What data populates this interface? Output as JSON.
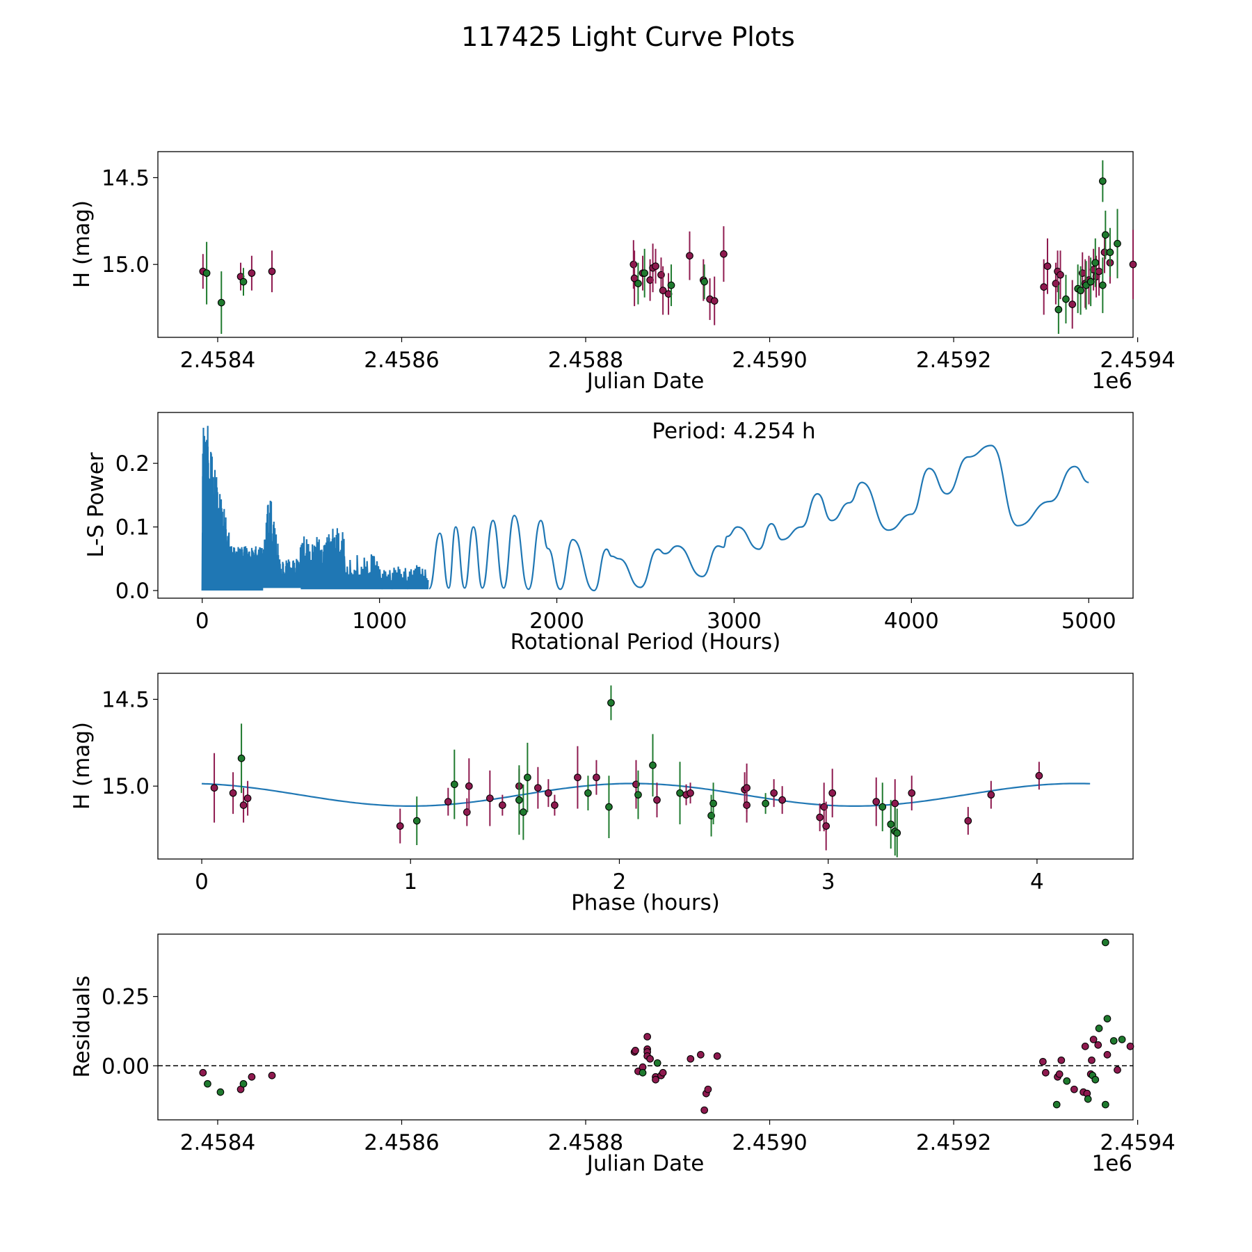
{
  "figure": {
    "title": "117425 Light Curve Plots",
    "colors": {
      "purple": "#8e1a4f",
      "green": "#1f7a2e",
      "fit": "#1f77b4"
    }
  },
  "chart_data": [
    {
      "type": "scatter",
      "name": "light-curve",
      "xlabel": "Julian Date",
      "ylabel": "H (mag)",
      "x_offset_label": "1e6",
      "xlim": [
        2458335,
        2459395
      ],
      "ylim": [
        15.42,
        14.35
      ],
      "xticks": [
        2458400,
        2458600,
        2458800,
        2459000,
        2459200,
        2459400
      ],
      "xtick_labels": [
        "2.4584",
        "2.4586",
        "2.4588",
        "2.4590",
        "2.4592",
        "2.4594"
      ],
      "yticks": [
        15.0,
        14.5
      ],
      "ytick_labels": [
        "15.0",
        "14.5"
      ],
      "series": [
        {
          "name": "purple",
          "color": "purple",
          "points": [
            [
              2458384,
              15.04,
              0.1
            ],
            [
              2458425,
              15.07,
              0.08
            ],
            [
              2458437,
              15.05,
              0.1
            ],
            [
              2458459,
              15.04,
              0.12
            ],
            [
              2458852,
              15.0,
              0.14
            ],
            [
              2458853,
              15.08,
              0.16
            ],
            [
              2458862,
              15.05,
              0.1
            ],
            [
              2458870,
              15.09,
              0.12
            ],
            [
              2458873,
              15.02,
              0.14
            ],
            [
              2458876,
              15.01,
              0.1
            ],
            [
              2458882,
              15.06,
              0.1
            ],
            [
              2458884,
              15.15,
              0.14
            ],
            [
              2458890,
              15.17,
              0.12
            ],
            [
              2458913,
              14.95,
              0.14
            ],
            [
              2458928,
              15.09,
              0.12
            ],
            [
              2458935,
              15.2,
              0.12
            ],
            [
              2458940,
              15.21,
              0.14
            ],
            [
              2458950,
              14.94,
              0.16
            ],
            [
              2459298,
              15.13,
              0.16
            ],
            [
              2459302,
              15.01,
              0.16
            ],
            [
              2459311,
              15.11,
              0.12
            ],
            [
              2459313,
              15.04,
              0.12
            ],
            [
              2459316,
              15.06,
              0.14
            ],
            [
              2459329,
              15.23,
              0.14
            ],
            [
              2459340,
              15.05,
              0.12
            ],
            [
              2459343,
              15.11,
              0.14
            ],
            [
              2459347,
              15.09,
              0.14
            ],
            [
              2459352,
              15.03,
              0.12
            ],
            [
              2459355,
              15.07,
              0.12
            ],
            [
              2459358,
              15.04,
              0.14
            ],
            [
              2459364,
              14.93,
              0.12
            ],
            [
              2459370,
              14.99,
              0.12
            ],
            [
              2459395,
              15.0,
              0.2
            ]
          ]
        },
        {
          "name": "green",
          "color": "green",
          "points": [
            [
              2458388,
              15.05,
              0.18
            ],
            [
              2458404,
              15.22,
              0.18
            ],
            [
              2458428,
              15.1,
              0.08
            ],
            [
              2458857,
              15.11,
              0.12
            ],
            [
              2458864,
              15.05,
              0.14
            ],
            [
              2458893,
              15.12,
              0.12
            ],
            [
              2458929,
              15.1,
              0.1
            ],
            [
              2459314,
              15.26,
              0.14
            ],
            [
              2459322,
              15.2,
              0.14
            ],
            [
              2459335,
              15.14,
              0.14
            ],
            [
              2459338,
              15.15,
              0.14
            ],
            [
              2459344,
              15.12,
              0.14
            ],
            [
              2459349,
              15.1,
              0.14
            ],
            [
              2459354,
              14.99,
              0.14
            ],
            [
              2459362,
              15.12,
              0.16
            ],
            [
              2459365,
              14.83,
              0.14
            ],
            [
              2459370,
              14.93,
              0.14
            ],
            [
              2459378,
              14.88,
              0.2
            ],
            [
              2459362,
              14.52,
              0.12
            ]
          ]
        }
      ]
    },
    {
      "type": "line",
      "name": "periodogram",
      "xlabel": "Rotational Period (Hours)",
      "ylabel": "L-S Power",
      "annotation": "Period: 4.254 h",
      "xlim": [
        -250,
        5250
      ],
      "ylim": [
        -0.012,
        0.28
      ],
      "xticks": [
        0,
        1000,
        2000,
        3000,
        4000,
        5000
      ],
      "xtick_labels": [
        "0",
        "1000",
        "2000",
        "3000",
        "4000",
        "5000"
      ],
      "yticks": [
        0.0,
        0.1,
        0.2
      ],
      "ytick_labels": [
        "0.0",
        "0.1",
        "0.2"
      ],
      "peaks_start": 1280,
      "peaks": [
        [
          1280,
          0.003
        ],
        [
          1340,
          0.09
        ],
        [
          1390,
          0.004
        ],
        [
          1430,
          0.1
        ],
        [
          1480,
          0.004
        ],
        [
          1530,
          0.1
        ],
        [
          1580,
          0.004
        ],
        [
          1640,
          0.11
        ],
        [
          1700,
          0.004
        ],
        [
          1760,
          0.118
        ],
        [
          1840,
          0.002
        ],
        [
          1910,
          0.11
        ],
        [
          1950,
          0.066
        ],
        [
          2020,
          0.002
        ],
        [
          2090,
          0.08
        ],
        [
          2210,
          0.0
        ],
        [
          2280,
          0.065
        ],
        [
          2310,
          0.054
        ],
        [
          2350,
          0.05
        ],
        [
          2470,
          0.005
        ],
        [
          2570,
          0.065
        ],
        [
          2610,
          0.058
        ],
        [
          2680,
          0.07
        ],
        [
          2820,
          0.022
        ],
        [
          2910,
          0.07
        ],
        [
          2940,
          0.068
        ],
        [
          2960,
          0.085
        ],
        [
          3020,
          0.1
        ],
        [
          3140,
          0.065
        ],
        [
          3210,
          0.105
        ],
        [
          3270,
          0.08
        ],
        [
          3380,
          0.1
        ],
        [
          3470,
          0.152
        ],
        [
          3550,
          0.11
        ],
        [
          3650,
          0.138
        ],
        [
          3720,
          0.17
        ],
        [
          3870,
          0.095
        ],
        [
          4000,
          0.12
        ],
        [
          4100,
          0.192
        ],
        [
          4200,
          0.152
        ],
        [
          4320,
          0.21
        ],
        [
          4450,
          0.228
        ],
        [
          4600,
          0.102
        ],
        [
          4780,
          0.14
        ],
        [
          4920,
          0.195
        ],
        [
          5000,
          0.17
        ]
      ]
    },
    {
      "type": "scatter",
      "name": "phase-folded",
      "xlabel": "Phase (hours)",
      "ylabel": "H (mag)",
      "xlim": [
        -0.21,
        4.46
      ],
      "ylim": [
        15.42,
        14.35
      ],
      "xticks": [
        0,
        1,
        2,
        3,
        4
      ],
      "xtick_labels": [
        "0",
        "1",
        "2",
        "3",
        "4"
      ],
      "yticks": [
        15.0,
        14.5
      ],
      "ytick_labels": [
        "15.0",
        "14.5"
      ],
      "fit": {
        "period": 4.254,
        "mean": 15.05,
        "amplitude": 0.065,
        "peak_phase": 1.0
      },
      "series": [
        {
          "name": "purple",
          "color": "purple",
          "points": [
            [
              0.06,
              15.01,
              0.2
            ],
            [
              0.15,
              15.04,
              0.12
            ],
            [
              0.2,
              15.11,
              0.1
            ],
            [
              0.22,
              15.07,
              0.1
            ],
            [
              0.95,
              15.23,
              0.1
            ],
            [
              1.18,
              15.09,
              0.08
            ],
            [
              1.27,
              15.15,
              0.08
            ],
            [
              1.28,
              15.0,
              0.16
            ],
            [
              1.38,
              15.07,
              0.16
            ],
            [
              1.44,
              15.11,
              0.06
            ],
            [
              1.52,
              15.0,
              0.1
            ],
            [
              1.61,
              15.01,
              0.12
            ],
            [
              1.66,
              15.04,
              0.08
            ],
            [
              1.69,
              15.11,
              0.06
            ],
            [
              1.8,
              14.95,
              0.18
            ],
            [
              1.89,
              14.95,
              0.1
            ],
            [
              2.08,
              14.99,
              0.14
            ],
            [
              2.18,
              15.08,
              0.1
            ],
            [
              2.32,
              15.05,
              0.06
            ],
            [
              2.34,
              15.04,
              0.06
            ],
            [
              2.6,
              15.02,
              0.1
            ],
            [
              2.61,
              15.01,
              0.14
            ],
            [
              2.61,
              15.11,
              0.1
            ],
            [
              2.74,
              15.04,
              0.08
            ],
            [
              2.78,
              15.08,
              0.08
            ],
            [
              2.96,
              15.18,
              0.08
            ],
            [
              2.98,
              15.12,
              0.14
            ],
            [
              2.99,
              15.23,
              0.14
            ],
            [
              3.02,
              15.04,
              0.14
            ],
            [
              3.23,
              15.09,
              0.14
            ],
            [
              3.32,
              15.1,
              0.14
            ],
            [
              3.4,
              15.04,
              0.1
            ],
            [
              3.67,
              15.2,
              0.08
            ],
            [
              3.78,
              15.05,
              0.08
            ],
            [
              4.01,
              14.94,
              0.08
            ]
          ]
        },
        {
          "name": "green",
          "color": "green",
          "points": [
            [
              0.19,
              14.84,
              0.2
            ],
            [
              1.03,
              15.2,
              0.14
            ],
            [
              1.21,
              14.99,
              0.2
            ],
            [
              1.52,
              15.08,
              0.2
            ],
            [
              1.54,
              15.15,
              0.16
            ],
            [
              1.56,
              14.95,
              0.2
            ],
            [
              1.85,
              15.04,
              0.1
            ],
            [
              1.95,
              15.12,
              0.18
            ],
            [
              1.96,
              14.52,
              0.1
            ],
            [
              2.09,
              15.05,
              0.14
            ],
            [
              2.16,
              14.88,
              0.18
            ],
            [
              2.29,
              15.04,
              0.18
            ],
            [
              2.44,
              15.17,
              0.12
            ],
            [
              2.45,
              15.1,
              0.12
            ],
            [
              2.7,
              15.1,
              0.06
            ],
            [
              3.26,
              15.12,
              0.14
            ],
            [
              3.3,
              15.22,
              0.14
            ],
            [
              3.32,
              15.26,
              0.14
            ],
            [
              3.33,
              15.27,
              0.14
            ]
          ]
        }
      ]
    },
    {
      "type": "scatter",
      "name": "residuals",
      "xlabel": "Julian Date",
      "ylabel": "Residuals",
      "x_offset_label": "1e6",
      "xlim": [
        2458335,
        2459395
      ],
      "ylim": [
        -0.195,
        0.475
      ],
      "xticks": [
        2458400,
        2458600,
        2458800,
        2459000,
        2459200,
        2459400
      ],
      "xtick_labels": [
        "2.4584",
        "2.4586",
        "2.4588",
        "2.4590",
        "2.4592",
        "2.4594"
      ],
      "yticks": [
        0.25,
        0.0
      ],
      "ytick_labels": [
        "0.25",
        "0.00"
      ],
      "zero_line": 0.0,
      "series": [
        {
          "name": "purple",
          "color": "purple",
          "points": [
            [
              2458384,
              -0.025
            ],
            [
              2458425,
              -0.085
            ],
            [
              2458437,
              -0.04
            ],
            [
              2458459,
              -0.035
            ],
            [
              2458853,
              0.05
            ],
            [
              2458854,
              0.055
            ],
            [
              2458857,
              -0.02
            ],
            [
              2458862,
              -0.005
            ],
            [
              2458867,
              0.06
            ],
            [
              2458867,
              0.05
            ],
            [
              2458867,
              0.035
            ],
            [
              2458867,
              0.105
            ],
            [
              2458870,
              0.025
            ],
            [
              2458876,
              -0.04
            ],
            [
              2458876,
              -0.05
            ],
            [
              2458882,
              -0.035
            ],
            [
              2458884,
              -0.025
            ],
            [
              2458914,
              0.025
            ],
            [
              2458925,
              0.04
            ],
            [
              2458931,
              -0.1
            ],
            [
              2458933,
              -0.085
            ],
            [
              2458929,
              -0.16
            ],
            [
              2458943,
              0.035
            ],
            [
              2459297,
              0.015
            ],
            [
              2459300,
              -0.025
            ],
            [
              2459313,
              -0.04
            ],
            [
              2459315,
              -0.03
            ],
            [
              2459317,
              0.02
            ],
            [
              2459331,
              -0.085
            ],
            [
              2459341,
              -0.095
            ],
            [
              2459343,
              0.07
            ],
            [
              2459349,
              -0.03
            ],
            [
              2459350,
              0.02
            ],
            [
              2459352,
              0.095
            ],
            [
              2459357,
              0.075
            ],
            [
              2459367,
              0.04
            ],
            [
              2459378,
              -0.015
            ],
            [
              2459392,
              0.07
            ],
            [
              2459345,
              -0.1
            ]
          ]
        },
        {
          "name": "green",
          "color": "green",
          "points": [
            [
              2458389,
              -0.065
            ],
            [
              2458403,
              -0.095
            ],
            [
              2458428,
              -0.065
            ],
            [
              2458862,
              -0.025
            ],
            [
              2458878,
              0.01
            ],
            [
              2459312,
              -0.14
            ],
            [
              2459323,
              -0.055
            ],
            [
              2459346,
              -0.12
            ],
            [
              2459351,
              -0.035
            ],
            [
              2459354,
              -0.05
            ],
            [
              2459358,
              0.135
            ],
            [
              2459365,
              -0.14
            ],
            [
              2459365,
              0.445
            ],
            [
              2459367,
              0.17
            ],
            [
              2459374,
              0.09
            ],
            [
              2459383,
              0.095
            ]
          ]
        }
      ]
    }
  ]
}
